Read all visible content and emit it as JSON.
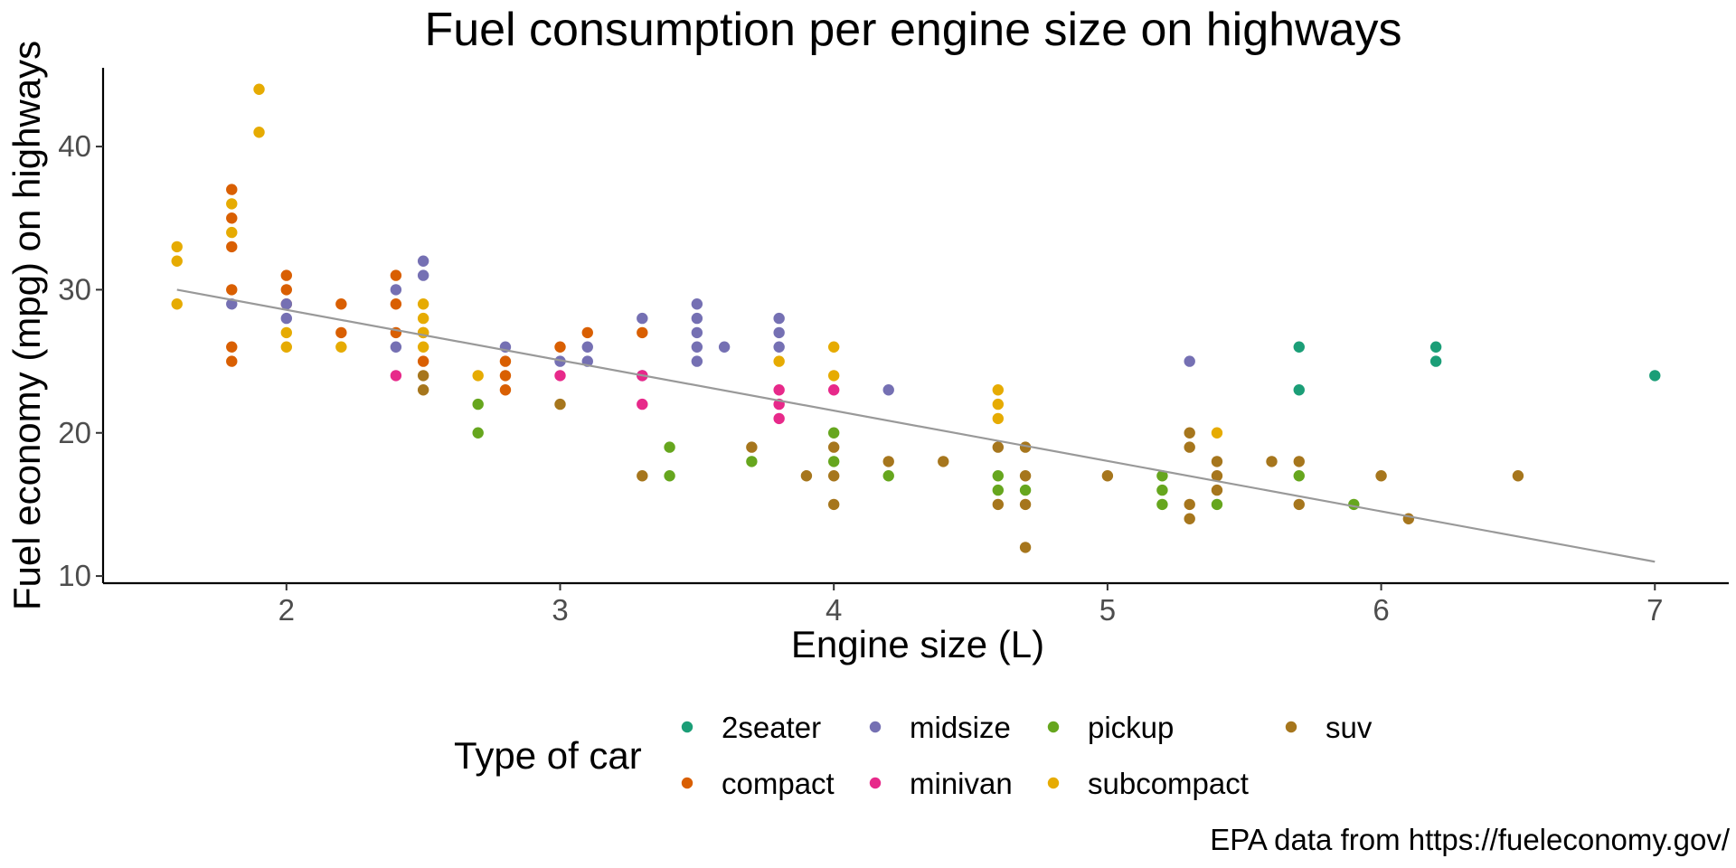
{
  "chart_data": {
    "type": "scatter",
    "title": "Fuel consumption per engine size on highways",
    "xlabel": "Engine size (L)",
    "ylabel": "Fuel economy (mpg) on highways",
    "caption": "EPA data from https://fueleconomy.gov/",
    "xlim": [
      1.33,
      7.27
    ],
    "ylim": [
      9.5,
      45.5
    ],
    "x_ticks": [
      2,
      3,
      4,
      5,
      6,
      7
    ],
    "y_ticks": [
      10,
      20,
      30,
      40
    ],
    "grid": false,
    "legend": {
      "title": "Type of car",
      "placement": "bottom",
      "entries": [
        {
          "name": "2seater",
          "color": "#1b9e77"
        },
        {
          "name": "compact",
          "color": "#d95f02"
        },
        {
          "name": "midsize",
          "color": "#7570b3"
        },
        {
          "name": "minivan",
          "color": "#e7298a"
        },
        {
          "name": "pickup",
          "color": "#66a61e"
        },
        {
          "name": "subcompact",
          "color": "#e6ab02"
        },
        {
          "name": "suv",
          "color": "#a6761d"
        }
      ]
    },
    "trend_line": {
      "color": "#999999",
      "points": [
        [
          1.6,
          30.0
        ],
        [
          7.0,
          11.0
        ]
      ]
    },
    "series": [
      {
        "name": "2seater",
        "color": "#1b9e77",
        "points": [
          [
            5.7,
            26
          ],
          [
            5.7,
            23
          ],
          [
            6.2,
            26
          ],
          [
            6.2,
            25
          ],
          [
            7.0,
            24
          ]
        ]
      },
      {
        "name": "compact",
        "color": "#d95f02",
        "points": [
          [
            1.8,
            37
          ],
          [
            1.8,
            35
          ],
          [
            1.8,
            33
          ],
          [
            1.8,
            30
          ],
          [
            1.8,
            26
          ],
          [
            1.8,
            25
          ],
          [
            2.0,
            31
          ],
          [
            2.0,
            30
          ],
          [
            2.0,
            29
          ],
          [
            2.2,
            29
          ],
          [
            2.2,
            27
          ],
          [
            2.4,
            31
          ],
          [
            2.4,
            29
          ],
          [
            2.4,
            27
          ],
          [
            2.5,
            27
          ],
          [
            2.5,
            25
          ],
          [
            2.8,
            25
          ],
          [
            2.8,
            24
          ],
          [
            2.8,
            23
          ],
          [
            3.0,
            26
          ],
          [
            3.1,
            27
          ],
          [
            3.3,
            27
          ]
        ]
      },
      {
        "name": "midsize",
        "color": "#7570b3",
        "points": [
          [
            1.8,
            29
          ],
          [
            2.0,
            29
          ],
          [
            2.0,
            28
          ],
          [
            2.4,
            30
          ],
          [
            2.4,
            26
          ],
          [
            2.5,
            32
          ],
          [
            2.5,
            31
          ],
          [
            2.8,
            26
          ],
          [
            3.0,
            25
          ],
          [
            3.1,
            26
          ],
          [
            3.1,
            25
          ],
          [
            3.3,
            28
          ],
          [
            3.3,
            24
          ],
          [
            3.5,
            29
          ],
          [
            3.5,
            28
          ],
          [
            3.5,
            27
          ],
          [
            3.5,
            26
          ],
          [
            3.5,
            25
          ],
          [
            3.6,
            26
          ],
          [
            3.8,
            28
          ],
          [
            3.8,
            27
          ],
          [
            3.8,
            26
          ],
          [
            4.2,
            23
          ],
          [
            5.3,
            25
          ]
        ]
      },
      {
        "name": "minivan",
        "color": "#e7298a",
        "points": [
          [
            2.4,
            24
          ],
          [
            3.0,
            24
          ],
          [
            3.3,
            24
          ],
          [
            3.3,
            22
          ],
          [
            3.8,
            23
          ],
          [
            3.8,
            22
          ],
          [
            3.8,
            21
          ],
          [
            4.0,
            23
          ]
        ]
      },
      {
        "name": "pickup",
        "color": "#66a61e",
        "points": [
          [
            2.7,
            22
          ],
          [
            2.7,
            20
          ],
          [
            3.4,
            19
          ],
          [
            3.4,
            17
          ],
          [
            3.7,
            18
          ],
          [
            4.0,
            20
          ],
          [
            4.0,
            18
          ],
          [
            4.2,
            17
          ],
          [
            4.6,
            17
          ],
          [
            4.6,
            16
          ],
          [
            4.7,
            16
          ],
          [
            5.2,
            17
          ],
          [
            5.2,
            16
          ],
          [
            5.2,
            15
          ],
          [
            5.4,
            15
          ],
          [
            5.7,
            17
          ],
          [
            5.9,
            15
          ]
        ]
      },
      {
        "name": "subcompact",
        "color": "#e6ab02",
        "points": [
          [
            1.6,
            33
          ],
          [
            1.6,
            32
          ],
          [
            1.6,
            29
          ],
          [
            1.8,
            36
          ],
          [
            1.8,
            34
          ],
          [
            1.9,
            44
          ],
          [
            1.9,
            41
          ],
          [
            2.0,
            27
          ],
          [
            2.0,
            26
          ],
          [
            2.2,
            26
          ],
          [
            2.5,
            29
          ],
          [
            2.5,
            28
          ],
          [
            2.5,
            27
          ],
          [
            2.5,
            26
          ],
          [
            2.7,
            24
          ],
          [
            3.8,
            25
          ],
          [
            4.0,
            26
          ],
          [
            4.0,
            24
          ],
          [
            4.6,
            23
          ],
          [
            4.6,
            22
          ],
          [
            4.6,
            21
          ],
          [
            5.4,
            20
          ]
        ]
      },
      {
        "name": "suv",
        "color": "#a6761d",
        "points": [
          [
            2.5,
            24
          ],
          [
            2.5,
            23
          ],
          [
            3.0,
            22
          ],
          [
            3.3,
            17
          ],
          [
            3.7,
            19
          ],
          [
            3.9,
            17
          ],
          [
            4.0,
            19
          ],
          [
            4.0,
            17
          ],
          [
            4.0,
            15
          ],
          [
            4.2,
            18
          ],
          [
            4.4,
            18
          ],
          [
            4.6,
            19
          ],
          [
            4.6,
            15
          ],
          [
            4.7,
            19
          ],
          [
            4.7,
            17
          ],
          [
            4.7,
            15
          ],
          [
            4.7,
            12
          ],
          [
            5.0,
            17
          ],
          [
            5.3,
            20
          ],
          [
            5.3,
            19
          ],
          [
            5.3,
            15
          ],
          [
            5.3,
            14
          ],
          [
            5.4,
            18
          ],
          [
            5.4,
            17
          ],
          [
            5.4,
            16
          ],
          [
            5.6,
            18
          ],
          [
            5.7,
            18
          ],
          [
            5.7,
            15
          ],
          [
            6.0,
            17
          ],
          [
            6.1,
            14
          ],
          [
            6.5,
            17
          ]
        ]
      }
    ]
  }
}
